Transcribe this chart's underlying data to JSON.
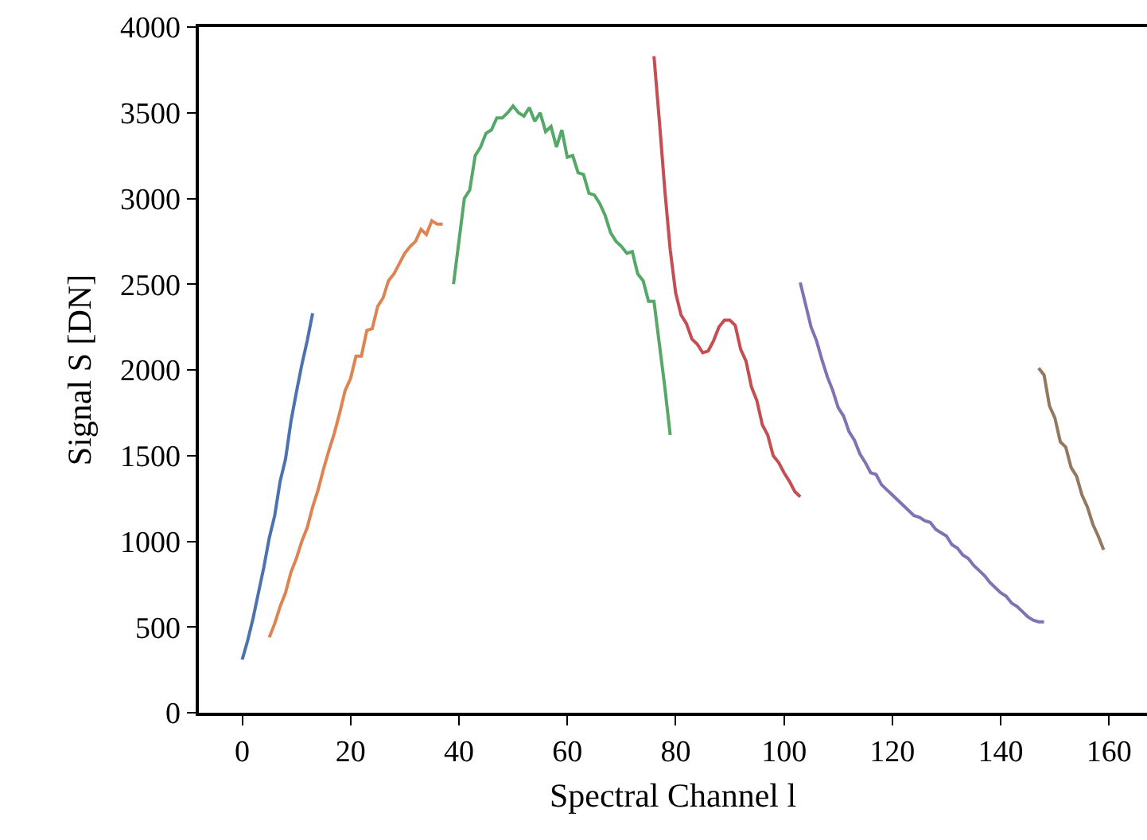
{
  "chart_data": {
    "type": "line",
    "xlabel": "Spectral Channel l",
    "ylabel": "Signal S [DN]",
    "xlim": [
      -8,
      167
    ],
    "ylim": [
      0,
      4000
    ],
    "xticks": [
      0,
      20,
      40,
      60,
      80,
      100,
      120,
      140,
      160
    ],
    "yticks": [
      0,
      500,
      1000,
      1500,
      2000,
      2500,
      3000,
      3500,
      4000
    ],
    "series": [
      {
        "color": "#4c72b0",
        "x": [
          0,
          1,
          2,
          3,
          4,
          5,
          6,
          7,
          8,
          9,
          10,
          11,
          12,
          13
        ],
        "values": [
          310,
          420,
          550,
          700,
          850,
          1020,
          1150,
          1350,
          1480,
          1700,
          1870,
          2030,
          2170,
          2330
        ]
      },
      {
        "color": "#dd8452",
        "x": [
          5,
          6,
          7,
          8,
          9,
          10,
          11,
          12,
          13,
          14,
          15,
          16,
          17,
          18,
          19,
          20,
          21,
          22,
          23,
          24,
          25,
          26,
          27,
          28,
          29,
          30,
          31,
          32,
          33,
          34,
          35,
          36,
          37
        ],
        "values": [
          440,
          520,
          620,
          700,
          820,
          900,
          1000,
          1080,
          1200,
          1300,
          1420,
          1530,
          1630,
          1750,
          1880,
          1950,
          2080,
          2080,
          2230,
          2240,
          2370,
          2420,
          2520,
          2560,
          2620,
          2680,
          2720,
          2750,
          2820,
          2790,
          2870,
          2850,
          2850
        ]
      },
      {
        "color": "#55a868",
        "x": [
          39,
          40,
          41,
          42,
          43,
          44,
          45,
          46,
          47,
          48,
          49,
          50,
          51,
          52,
          53,
          54,
          55,
          56,
          57,
          58,
          59,
          60,
          61,
          62,
          63,
          64,
          65,
          66,
          67,
          68,
          69,
          70,
          71,
          72,
          73,
          74,
          75,
          76,
          77,
          78,
          79
        ],
        "values": [
          2500,
          2750,
          3000,
          3050,
          3250,
          3300,
          3380,
          3400,
          3470,
          3470,
          3500,
          3540,
          3500,
          3480,
          3530,
          3450,
          3500,
          3390,
          3420,
          3300,
          3400,
          3240,
          3250,
          3150,
          3140,
          3030,
          3020,
          2970,
          2900,
          2800,
          2750,
          2720,
          2680,
          2690,
          2560,
          2520,
          2400,
          2400,
          2150,
          1900,
          1620
        ]
      },
      {
        "color": "#c44e52",
        "x": [
          76,
          77,
          78,
          79,
          80,
          81,
          82,
          83,
          84,
          85,
          86,
          87,
          88,
          89,
          90,
          91,
          92,
          93,
          94,
          95,
          96,
          97,
          98,
          99,
          100,
          101,
          102,
          103
        ],
        "values": [
          3830,
          3450,
          3050,
          2700,
          2450,
          2320,
          2270,
          2180,
          2150,
          2100,
          2110,
          2170,
          2250,
          2290,
          2290,
          2260,
          2120,
          2050,
          1900,
          1820,
          1680,
          1620,
          1500,
          1460,
          1400,
          1350,
          1290,
          1260
        ]
      },
      {
        "color": "#8172b3",
        "x": [
          103,
          104,
          105,
          106,
          107,
          108,
          109,
          110,
          111,
          112,
          113,
          114,
          115,
          116,
          117,
          118,
          119,
          120,
          121,
          122,
          123,
          124,
          125,
          126,
          127,
          128,
          129,
          130,
          131,
          132,
          133,
          134,
          135,
          136,
          137,
          138,
          139,
          140,
          141,
          142,
          143,
          144,
          145,
          146,
          147,
          148
        ],
        "values": [
          2510,
          2380,
          2250,
          2170,
          2060,
          1960,
          1880,
          1780,
          1730,
          1640,
          1590,
          1510,
          1460,
          1400,
          1390,
          1330,
          1300,
          1270,
          1240,
          1210,
          1180,
          1150,
          1140,
          1120,
          1110,
          1070,
          1050,
          1030,
          980,
          960,
          920,
          900,
          860,
          830,
          800,
          760,
          730,
          700,
          680,
          640,
          620,
          590,
          560,
          540,
          530,
          530
        ]
      },
      {
        "color": "#937860",
        "x": [
          147,
          148,
          149,
          150,
          151,
          152,
          153,
          154,
          155,
          156,
          157,
          158,
          159
        ],
        "values": [
          2010,
          1970,
          1790,
          1720,
          1580,
          1550,
          1430,
          1380,
          1270,
          1200,
          1100,
          1030,
          950
        ]
      }
    ]
  }
}
